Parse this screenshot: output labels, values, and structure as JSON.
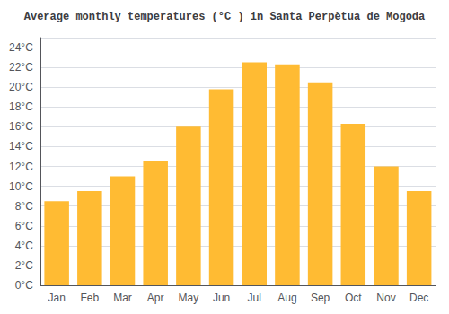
{
  "chart_data": {
    "type": "bar",
    "title": "Average monthly temperatures (°C ) in Santa Perpètua de Mogoda",
    "categories": [
      "Jan",
      "Feb",
      "Mar",
      "Apr",
      "May",
      "Jun",
      "Jul",
      "Aug",
      "Sep",
      "Oct",
      "Nov",
      "Dec"
    ],
    "values": [
      8.5,
      9.5,
      11.0,
      12.5,
      16.0,
      19.8,
      22.5,
      22.3,
      20.5,
      16.3,
      12.0,
      9.5
    ],
    "color": "#FFBB33",
    "ylim": [
      0,
      25
    ],
    "yticks": [
      {
        "value": 0,
        "label": "0°C"
      },
      {
        "value": 2,
        "label": "2°C"
      },
      {
        "value": 4,
        "label": "4°C"
      },
      {
        "value": 6,
        "label": "6°C"
      },
      {
        "value": 8,
        "label": "8°C"
      },
      {
        "value": 10,
        "label": "10°C"
      },
      {
        "value": 12,
        "label": "12°C"
      },
      {
        "value": 14,
        "label": "14°C"
      },
      {
        "value": 16,
        "label": "16°C"
      },
      {
        "value": 18,
        "label": "18°C"
      },
      {
        "value": 20,
        "label": "20°C"
      },
      {
        "value": 22,
        "label": "22°C"
      },
      {
        "value": 24,
        "label": "24°C"
      }
    ],
    "grid": true
  }
}
